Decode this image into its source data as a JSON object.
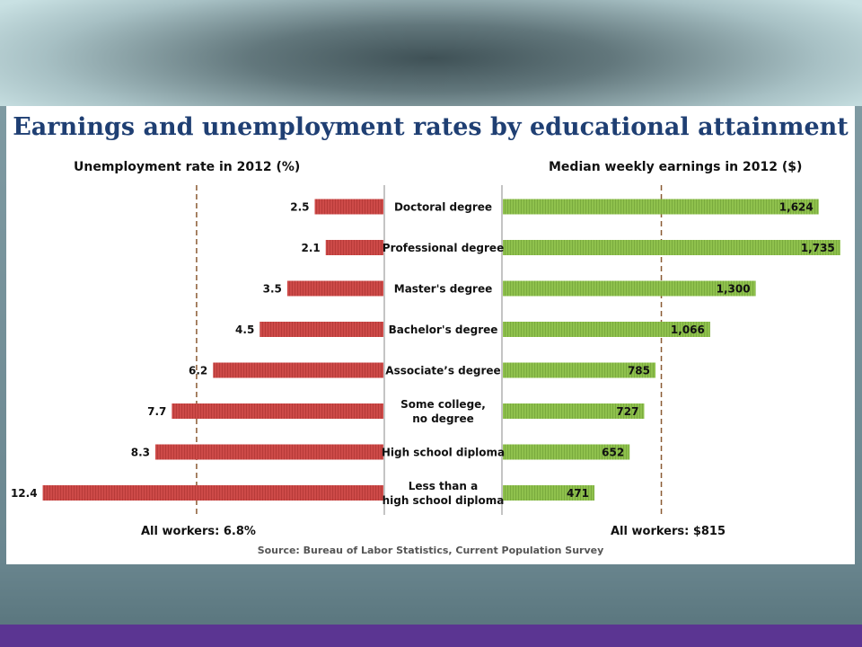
{
  "colors": {
    "unemployment_bar": "#cd4a48",
    "earnings_bar": "#8fc14d",
    "title": "#1f3f73",
    "reference_line": "#8a5a32",
    "footer_band": "#5b3592"
  },
  "chart_data": {
    "type": "bar",
    "title": "Earnings and unemployment rates by educational attainment",
    "categories": [
      "Doctoral degree",
      "Professional degree",
      "Master's degree",
      "Bachelor's degree",
      "Associate's degree",
      "Some college, no degree",
      "High school diploma",
      "Less than a high school diploma"
    ],
    "category_lines": [
      [
        "Doctoral degree"
      ],
      [
        "Professional degree"
      ],
      [
        "Master's degree"
      ],
      [
        "Bachelor's degree"
      ],
      [
        "Associate’s degree"
      ],
      [
        "Some college,",
        "no degree"
      ],
      [
        "High school diploma"
      ],
      [
        "Less than a",
        "high school diploma"
      ]
    ],
    "series": [
      {
        "name": "Unemployment rate in 2012 (%)",
        "values": [
          2.5,
          2.1,
          3.5,
          4.5,
          6.2,
          7.7,
          8.3,
          12.4
        ],
        "labels": [
          "2.5",
          "2.1",
          "3.5",
          "4.5",
          "6.2",
          "7.7",
          "8.3",
          "12.4"
        ],
        "reference": 6.8,
        "reference_label": "All workers: 6.8%"
      },
      {
        "name": "Median weekly earnings in 2012 ($)",
        "values": [
          1624,
          1735,
          1300,
          1066,
          785,
          727,
          652,
          471
        ],
        "labels": [
          "1,624",
          "1,735",
          "1,300",
          "1,066",
          "785",
          "727",
          "652",
          "471"
        ],
        "reference": 815,
        "reference_label": "All workers: $815"
      }
    ],
    "source": "Source: Bureau of Labor Statistics, Current Population Survey"
  }
}
